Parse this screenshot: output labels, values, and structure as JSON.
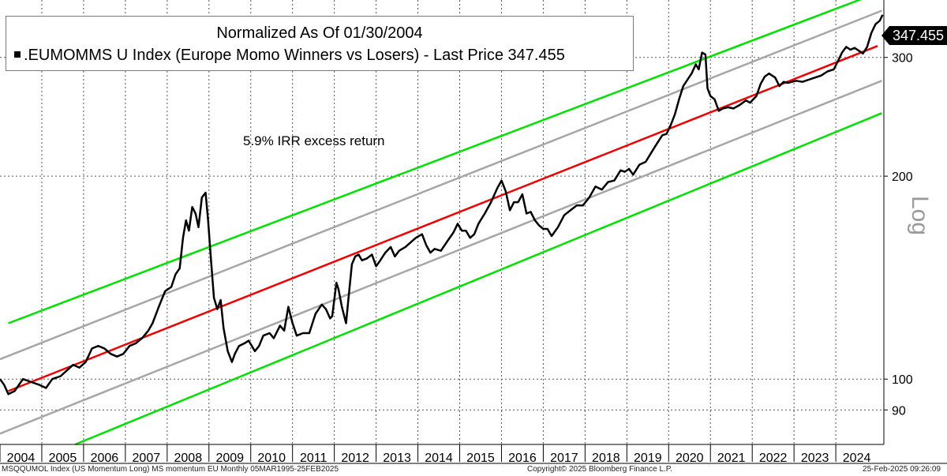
{
  "chart_data": {
    "type": "line",
    "scale": "log",
    "title": "Normalized As Of 01/30/2004",
    "legend": ".EUMOMMS U Index (Europe Momo Winners vs Losers) - Last Price",
    "last_price": "347.455",
    "annotation": "5.9% IRR excess return",
    "axis_label": "Log",
    "ylim": [
      80,
      365
    ],
    "y_ticks": [
      {
        "value": 90,
        "label": "90"
      },
      {
        "value": 100,
        "label": "100"
      },
      {
        "value": 200,
        "label": "200"
      },
      {
        "value": 300,
        "label": "300"
      }
    ],
    "x_ticks": [
      "2004",
      "2005",
      "2006",
      "2007",
      "2008",
      "2009",
      "2010",
      "2011",
      "2012",
      "2013",
      "2014",
      "2015",
      "2016",
      "2017",
      "2018",
      "2019",
      "2020",
      "2021",
      "2022",
      "2023",
      "2024"
    ],
    "xlim": [
      2004.0,
      2025.15
    ],
    "series": [
      {
        "name": ".EUMOMMS U Index",
        "color": "#000000",
        "points": [
          [
            2004.0,
            100
          ],
          [
            2004.1,
            98
          ],
          [
            2004.2,
            95
          ],
          [
            2004.35,
            96
          ],
          [
            2004.55,
            100
          ],
          [
            2004.75,
            99
          ],
          [
            2004.95,
            98
          ],
          [
            2005.1,
            97
          ],
          [
            2005.25,
            100
          ],
          [
            2005.45,
            101
          ],
          [
            2005.6,
            103
          ],
          [
            2005.75,
            105
          ],
          [
            2005.9,
            104
          ],
          [
            2006.05,
            106
          ],
          [
            2006.2,
            111
          ],
          [
            2006.35,
            112
          ],
          [
            2006.5,
            111
          ],
          [
            2006.65,
            109
          ],
          [
            2006.8,
            108
          ],
          [
            2006.95,
            109
          ],
          [
            2007.1,
            112
          ],
          [
            2007.25,
            113
          ],
          [
            2007.4,
            115
          ],
          [
            2007.55,
            118
          ],
          [
            2007.65,
            121
          ],
          [
            2007.8,
            128
          ],
          [
            2007.95,
            135
          ],
          [
            2008.1,
            137
          ],
          [
            2008.2,
            143
          ],
          [
            2008.3,
            146
          ],
          [
            2008.38,
            162
          ],
          [
            2008.45,
            172
          ],
          [
            2008.52,
            166
          ],
          [
            2008.6,
            180
          ],
          [
            2008.68,
            176
          ],
          [
            2008.75,
            168
          ],
          [
            2008.83,
            186
          ],
          [
            2008.92,
            189
          ],
          [
            2008.98,
            172
          ],
          [
            2009.05,
            150
          ],
          [
            2009.12,
            132
          ],
          [
            2009.2,
            127
          ],
          [
            2009.28,
            131
          ],
          [
            2009.35,
            119
          ],
          [
            2009.45,
            110
          ],
          [
            2009.55,
            106
          ],
          [
            2009.62,
            109
          ],
          [
            2009.72,
            112
          ],
          [
            2009.85,
            113
          ],
          [
            2009.95,
            114
          ],
          [
            2010.1,
            110
          ],
          [
            2010.2,
            112
          ],
          [
            2010.3,
            116
          ],
          [
            2010.45,
            117
          ],
          [
            2010.55,
            115
          ],
          [
            2010.7,
            120
          ],
          [
            2010.8,
            118
          ],
          [
            2010.9,
            128
          ],
          [
            2011.0,
            121
          ],
          [
            2011.1,
            116
          ],
          [
            2011.25,
            117
          ],
          [
            2011.4,
            117
          ],
          [
            2011.55,
            125
          ],
          [
            2011.7,
            129
          ],
          [
            2011.8,
            127
          ],
          [
            2011.9,
            123
          ],
          [
            2011.95,
            124
          ],
          [
            2012.05,
            139
          ],
          [
            2012.1,
            136
          ],
          [
            2012.18,
            128
          ],
          [
            2012.28,
            121
          ],
          [
            2012.35,
            134
          ],
          [
            2012.42,
            148
          ],
          [
            2012.5,
            152
          ],
          [
            2012.58,
            153
          ],
          [
            2012.66,
            150
          ],
          [
            2012.78,
            151
          ],
          [
            2012.9,
            153
          ],
          [
            2013.0,
            147
          ],
          [
            2013.1,
            150
          ],
          [
            2013.22,
            154
          ],
          [
            2013.35,
            157
          ],
          [
            2013.45,
            152
          ],
          [
            2013.55,
            155
          ],
          [
            2013.7,
            157
          ],
          [
            2013.85,
            160
          ],
          [
            2013.95,
            162
          ],
          [
            2014.1,
            164
          ],
          [
            2014.2,
            158
          ],
          [
            2014.3,
            154
          ],
          [
            2014.4,
            156
          ],
          [
            2014.55,
            155
          ],
          [
            2014.7,
            160
          ],
          [
            2014.85,
            165
          ],
          [
            2014.95,
            170
          ],
          [
            2015.05,
            166
          ],
          [
            2015.15,
            166
          ],
          [
            2015.25,
            162
          ],
          [
            2015.35,
            164
          ],
          [
            2015.45,
            170
          ],
          [
            2015.6,
            176
          ],
          [
            2015.75,
            183
          ],
          [
            2015.9,
            192
          ],
          [
            2016.0,
            197
          ],
          [
            2016.1,
            190
          ],
          [
            2016.2,
            178
          ],
          [
            2016.3,
            183
          ],
          [
            2016.4,
            183
          ],
          [
            2016.5,
            188
          ],
          [
            2016.6,
            176
          ],
          [
            2016.7,
            177
          ],
          [
            2016.8,
            172
          ],
          [
            2016.9,
            169
          ],
          [
            2017.0,
            167
          ],
          [
            2017.1,
            167
          ],
          [
            2017.2,
            163
          ],
          [
            2017.35,
            168
          ],
          [
            2017.5,
            175
          ],
          [
            2017.65,
            178
          ],
          [
            2017.8,
            181
          ],
          [
            2017.95,
            181
          ],
          [
            2018.1,
            186
          ],
          [
            2018.25,
            193
          ],
          [
            2018.4,
            191
          ],
          [
            2018.55,
            196
          ],
          [
            2018.7,
            197
          ],
          [
            2018.85,
            204
          ],
          [
            2018.95,
            203
          ],
          [
            2019.05,
            205
          ],
          [
            2019.15,
            201
          ],
          [
            2019.3,
            208
          ],
          [
            2019.45,
            210
          ],
          [
            2019.55,
            215
          ],
          [
            2019.65,
            220
          ],
          [
            2019.75,
            225
          ],
          [
            2019.85,
            230
          ],
          [
            2019.95,
            231
          ],
          [
            2020.05,
            238
          ],
          [
            2020.15,
            247
          ],
          [
            2020.25,
            260
          ],
          [
            2020.35,
            272
          ],
          [
            2020.45,
            278
          ],
          [
            2020.55,
            284
          ],
          [
            2020.65,
            293
          ],
          [
            2020.72,
            288
          ],
          [
            2020.8,
            305
          ],
          [
            2020.88,
            303
          ],
          [
            2020.93,
            270
          ],
          [
            2021.0,
            263
          ],
          [
            2021.1,
            260
          ],
          [
            2021.2,
            250
          ],
          [
            2021.3,
            252
          ],
          [
            2021.42,
            253
          ],
          [
            2021.55,
            252
          ],
          [
            2021.7,
            255
          ],
          [
            2021.85,
            259
          ],
          [
            2021.95,
            257
          ],
          [
            2022.1,
            263
          ],
          [
            2022.2,
            274
          ],
          [
            2022.3,
            281
          ],
          [
            2022.4,
            284
          ],
          [
            2022.55,
            280
          ],
          [
            2022.65,
            272
          ],
          [
            2022.75,
            276
          ],
          [
            2022.85,
            275
          ],
          [
            2022.95,
            276
          ],
          [
            2023.05,
            277
          ],
          [
            2023.2,
            276
          ],
          [
            2023.35,
            278
          ],
          [
            2023.5,
            280
          ],
          [
            2023.65,
            282
          ],
          [
            2023.8,
            286
          ],
          [
            2023.95,
            288
          ],
          [
            2024.05,
            296
          ],
          [
            2024.15,
            305
          ],
          [
            2024.25,
            311
          ],
          [
            2024.35,
            308
          ],
          [
            2024.45,
            310
          ],
          [
            2024.55,
            307
          ],
          [
            2024.65,
            304
          ],
          [
            2024.75,
            311
          ],
          [
            2024.85,
            326
          ],
          [
            2024.95,
            336
          ],
          [
            2025.05,
            340
          ],
          [
            2025.12,
            347
          ]
        ]
      },
      {
        "name": "Trend",
        "color": "#ee0000",
        "points": [
          [
            2004.2,
            96
          ],
          [
            2025.0,
            312
          ]
        ]
      },
      {
        "name": "Upper band 1",
        "color": "#a6a6a6",
        "points": [
          [
            2004.0,
            107
          ],
          [
            2025.1,
            352
          ]
        ]
      },
      {
        "name": "Lower band 1",
        "color": "#a6a6a6",
        "points": [
          [
            2004.0,
            83
          ],
          [
            2025.1,
            277
          ]
        ]
      },
      {
        "name": "Upper band 2",
        "color": "#00e000",
        "points": [
          [
            2004.2,
            121
          ],
          [
            2025.1,
            376
          ]
        ]
      },
      {
        "name": "Lower band 2",
        "color": "#00e000",
        "points": [
          [
            2005.8,
            80
          ],
          [
            2025.1,
            248
          ]
        ]
      }
    ]
  },
  "footer": {
    "source": "MSQQUMOL Index (US Momentum Long) MS momentum EU  Monthly 05MAR1995-25FEB2025",
    "copyright": "Copyright© 2025 Bloomberg Finance L.P.",
    "timestamp": "25-Feb-2025 09:26:09"
  }
}
